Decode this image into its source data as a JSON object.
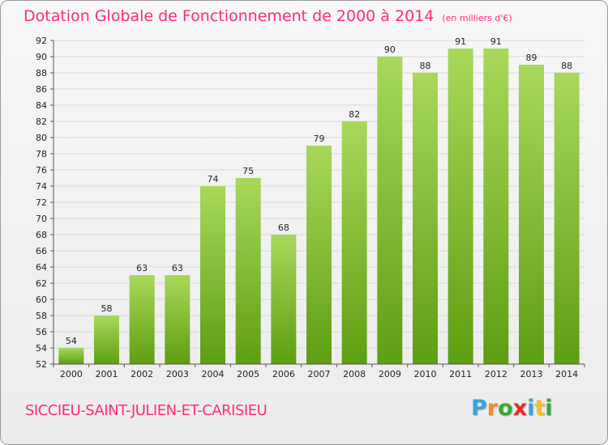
{
  "page": {
    "title": "Dotation Globale de Fonctionnement de 2000 à 2014",
    "subtitle": "(en milliers d'€)",
    "commune": "SICCIEU-SAINT-JULIEN-ET-CARISIEU",
    "logo": {
      "letters": [
        "P",
        "r",
        "o",
        "x",
        "i",
        "t",
        "i"
      ],
      "colors": [
        "#3aa0e0",
        "#f28c28",
        "#39a935",
        "#e52b2b",
        "#3aa0e0",
        "#f2c028",
        "#39a935"
      ]
    }
  },
  "chart_data": {
    "type": "bar",
    "title": "Dotation Globale de Fonctionnement de 2000 à 2014",
    "subtitle": "(en milliers d'€)",
    "categories": [
      "2000",
      "2001",
      "2002",
      "2003",
      "2004",
      "2005",
      "2006",
      "2007",
      "2008",
      "2009",
      "2010",
      "2011",
      "2012",
      "2013",
      "2014"
    ],
    "values": [
      54,
      58,
      63,
      63,
      74,
      75,
      68,
      79,
      82,
      90,
      88,
      91,
      91,
      89,
      88
    ],
    "ylim": [
      52,
      92
    ],
    "yticks": [
      52,
      54,
      56,
      58,
      60,
      62,
      64,
      66,
      68,
      70,
      72,
      74,
      76,
      78,
      80,
      82,
      84,
      86,
      88,
      90,
      92
    ],
    "grid": true,
    "bar_color_top": "#a8d85a",
    "bar_color_bottom": "#5e9e12"
  }
}
